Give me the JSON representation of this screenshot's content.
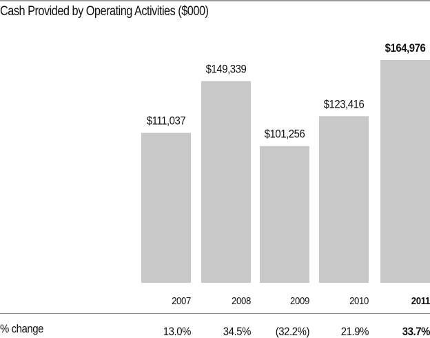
{
  "chart_data": {
    "type": "bar",
    "title": "Cash Provided by Operating Activities ($000)",
    "xlabel": "",
    "ylabel": "",
    "ylim": [
      0,
      164976
    ],
    "grid": false,
    "legend": "none",
    "categories": [
      "2007",
      "2008",
      "2009",
      "2010",
      "2011"
    ],
    "values": [
      111037,
      149339,
      101256,
      123416,
      164976
    ],
    "value_labels": [
      "$111,037",
      "$149,339",
      "$101,256",
      "$123,416",
      "$164,976"
    ],
    "highlight_index": 4,
    "bar_color": "#c8c8c8",
    "pct_change": {
      "label": "% change",
      "values": [
        "13.0%",
        "34.5%",
        "(32.2%)",
        "21.9%",
        "33.7%"
      ]
    }
  }
}
